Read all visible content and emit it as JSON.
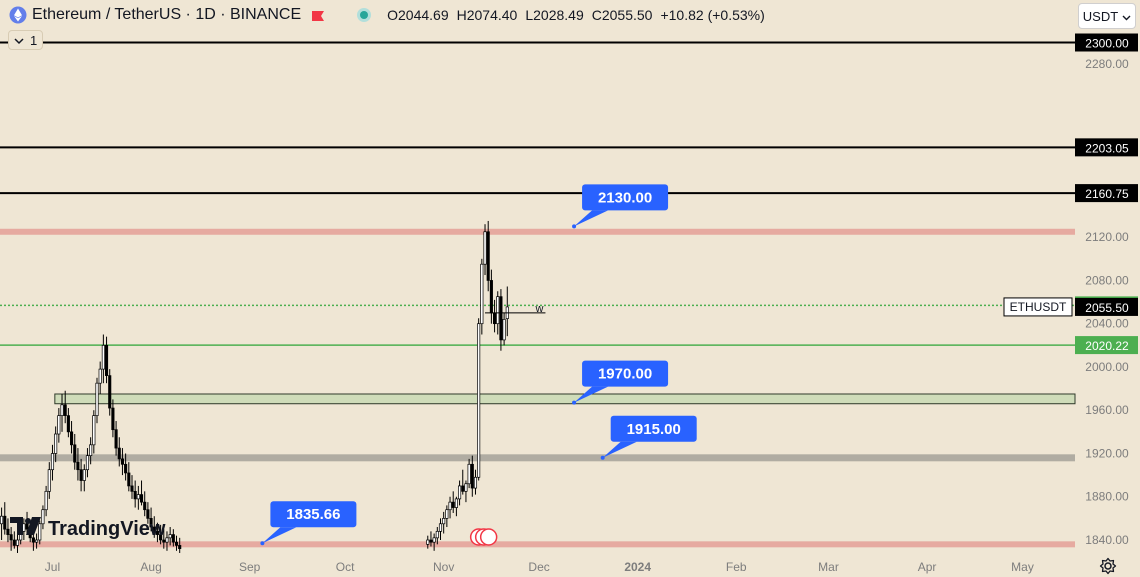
{
  "header": {
    "title": "Ethereum / TetherUS · 1D · BINANCE",
    "ohlc": {
      "open": "O2044.69",
      "high": "H2074.40",
      "low": "L2028.49",
      "close": "C2055.50",
      "change": "+10.82 (+0.53%)"
    },
    "indicator_count": "1",
    "currency": "USDT"
  },
  "branding": {
    "logo_text": "TradingView"
  },
  "colors": {
    "background": "#efe6d4",
    "up_candle": "#ffffff",
    "down_candle": "#000000",
    "black_level": "#000000",
    "red_level": "#e6aaa0",
    "green_level": "#4caf50",
    "grey_level": "#b0aca2",
    "zone_fill": "#cfdcb9",
    "callout": "#2962ff",
    "price_tag_green": "#4caf50"
  },
  "chart_data": {
    "type": "candlestick",
    "symbol": "ETHUSDT",
    "y_range": [
      1828,
      2312
    ],
    "y_ticks": [
      1840,
      1880,
      1920,
      1960,
      2000,
      2040,
      2080,
      2120,
      2280
    ],
    "x_ticks": [
      {
        "label": "Jul",
        "bar": 16
      },
      {
        "label": "Aug",
        "bar": 47
      },
      {
        "label": "Sep",
        "bar": 78
      },
      {
        "label": "Oct",
        "bar": 108
      },
      {
        "label": "Nov",
        "bar": 139
      },
      {
        "label": "Dec",
        "bar": 169
      },
      {
        "label": "2024",
        "bar": 200
      },
      {
        "label": "Feb",
        "bar": 231
      },
      {
        "label": "Mar",
        "bar": 260
      },
      {
        "label": "Apr",
        "bar": 291
      },
      {
        "label": "May",
        "bar": 321
      }
    ],
    "bars_visible": 338,
    "horizontal_levels": [
      {
        "value": 2300.0,
        "label": "2300.00",
        "style": "black"
      },
      {
        "value": 2203.05,
        "label": "2203.05",
        "style": "black"
      },
      {
        "value": 2160.75,
        "label": "2160.75",
        "style": "black"
      },
      {
        "value": 2125,
        "style": "red"
      },
      {
        "value": 2056.93,
        "label": "2056.93",
        "style": "green-dotted"
      },
      {
        "value": 2020.22,
        "label": "2020.22",
        "style": "green"
      },
      {
        "value": 1916,
        "style": "grey"
      },
      {
        "value": 1836,
        "style": "red"
      }
    ],
    "zone": {
      "from_bar": 18,
      "top": 1975,
      "bottom": 1966
    },
    "last_price": {
      "symbol": "ETHUSDT",
      "value": 2055.5,
      "label": "2055.50"
    },
    "callouts": [
      {
        "label": "2130.00",
        "anchor_bar": 180,
        "anchor_price": 2130
      },
      {
        "label": "1970.00",
        "anchor_bar": 180,
        "anchor_price": 1967
      },
      {
        "label": "1915.00",
        "anchor_bar": 189,
        "anchor_price": 1916
      },
      {
        "label": "1835.66",
        "anchor_bar": 82,
        "anchor_price": 1837
      }
    ],
    "annotation": {
      "label": "w",
      "bar_from": 152,
      "bar_to": 171,
      "price": 2050
    },
    "candles": [
      [
        1855,
        1870,
        1840,
        1862
      ],
      [
        1862,
        1875,
        1845,
        1850
      ],
      [
        1850,
        1860,
        1838,
        1845
      ],
      [
        1845,
        1852,
        1830,
        1840
      ],
      [
        1840,
        1848,
        1832,
        1835
      ],
      [
        1835,
        1845,
        1828,
        1840
      ],
      [
        1840,
        1852,
        1836,
        1848
      ],
      [
        1848,
        1860,
        1840,
        1855
      ],
      [
        1855,
        1866,
        1846,
        1850
      ],
      [
        1850,
        1858,
        1838,
        1842
      ],
      [
        1842,
        1850,
        1830,
        1838
      ],
      [
        1838,
        1846,
        1832,
        1840
      ],
      [
        1840,
        1858,
        1836,
        1855
      ],
      [
        1855,
        1872,
        1850,
        1868
      ],
      [
        1868,
        1890,
        1862,
        1885
      ],
      [
        1885,
        1912,
        1878,
        1905
      ],
      [
        1905,
        1928,
        1895,
        1920
      ],
      [
        1920,
        1945,
        1912,
        1938
      ],
      [
        1938,
        1962,
        1930,
        1955
      ],
      [
        1955,
        1975,
        1940,
        1965
      ],
      [
        1965,
        1978,
        1948,
        1955
      ],
      [
        1955,
        1962,
        1935,
        1940
      ],
      [
        1940,
        1950,
        1920,
        1928
      ],
      [
        1928,
        1938,
        1905,
        1912
      ],
      [
        1912,
        1925,
        1895,
        1905
      ],
      [
        1905,
        1915,
        1885,
        1895
      ],
      [
        1895,
        1910,
        1885,
        1905
      ],
      [
        1905,
        1925,
        1898,
        1918
      ],
      [
        1918,
        1935,
        1910,
        1928
      ],
      [
        1928,
        1960,
        1920,
        1955
      ],
      [
        1955,
        1990,
        1948,
        1985
      ],
      [
        1985,
        2005,
        1975,
        1998
      ],
      [
        1998,
        2030,
        1985,
        2020
      ],
      [
        2020,
        2028,
        1985,
        1992
      ],
      [
        1992,
        1998,
        1955,
        1962
      ],
      [
        1962,
        1970,
        1935,
        1942
      ],
      [
        1942,
        1950,
        1918,
        1925
      ],
      [
        1925,
        1935,
        1908,
        1915
      ],
      [
        1915,
        1925,
        1900,
        1910
      ],
      [
        1910,
        1920,
        1895,
        1902
      ],
      [
        1902,
        1912,
        1885,
        1890
      ],
      [
        1890,
        1900,
        1878,
        1885
      ],
      [
        1885,
        1895,
        1870,
        1878
      ],
      [
        1878,
        1890,
        1868,
        1882
      ],
      [
        1882,
        1895,
        1872,
        1875
      ],
      [
        1875,
        1885,
        1862,
        1868
      ],
      [
        1868,
        1875,
        1855,
        1860
      ],
      [
        1860,
        1870,
        1848,
        1852
      ],
      [
        1852,
        1862,
        1842,
        1848
      ],
      [
        1848,
        1856,
        1838,
        1845
      ],
      [
        1845,
        1854,
        1836,
        1840
      ],
      [
        1840,
        1850,
        1832,
        1838
      ],
      [
        1838,
        1848,
        1830,
        1842
      ],
      [
        1842,
        1852,
        1835,
        1845
      ],
      [
        1845,
        1850,
        1834,
        1838
      ],
      [
        1838,
        1844,
        1830,
        1835
      ],
      [
        1835,
        1842,
        1828,
        1832
      ]
    ],
    "candles_start_bar": 0,
    "candles_late": [
      [
        1836,
        1844,
        1832,
        1840
      ],
      [
        1840,
        1848,
        1834,
        1838
      ],
      [
        1838,
        1846,
        1830,
        1842
      ],
      [
        1842,
        1852,
        1836,
        1848
      ],
      [
        1848,
        1860,
        1840,
        1855
      ],
      [
        1855,
        1866,
        1846,
        1860
      ],
      [
        1860,
        1872,
        1852,
        1868
      ],
      [
        1868,
        1880,
        1860,
        1875
      ],
      [
        1875,
        1885,
        1865,
        1870
      ],
      [
        1870,
        1880,
        1862,
        1878
      ],
      [
        1878,
        1895,
        1872,
        1890
      ],
      [
        1890,
        1905,
        1882,
        1885
      ],
      [
        1885,
        1895,
        1875,
        1892
      ],
      [
        1892,
        1915,
        1888,
        1910
      ],
      [
        1910,
        1918,
        1880,
        1888
      ],
      [
        1888,
        1905,
        1882,
        1898
      ],
      [
        1898,
        2045,
        1895,
        2040
      ],
      [
        2040,
        2100,
        2030,
        2095
      ],
      [
        2095,
        2132,
        2085,
        2125
      ],
      [
        2125,
        2135,
        2070,
        2080
      ],
      [
        2080,
        2090,
        2040,
        2050
      ],
      [
        2050,
        2062,
        2032,
        2040
      ],
      [
        2040,
        2070,
        2030,
        2065
      ],
      [
        2065,
        2072,
        2015,
        2025
      ],
      [
        2025,
        2050,
        2020,
        2044
      ],
      [
        2044.69,
        2074.4,
        2028.49,
        2055.5
      ]
    ],
    "candles_late_start_bar": 134
  }
}
